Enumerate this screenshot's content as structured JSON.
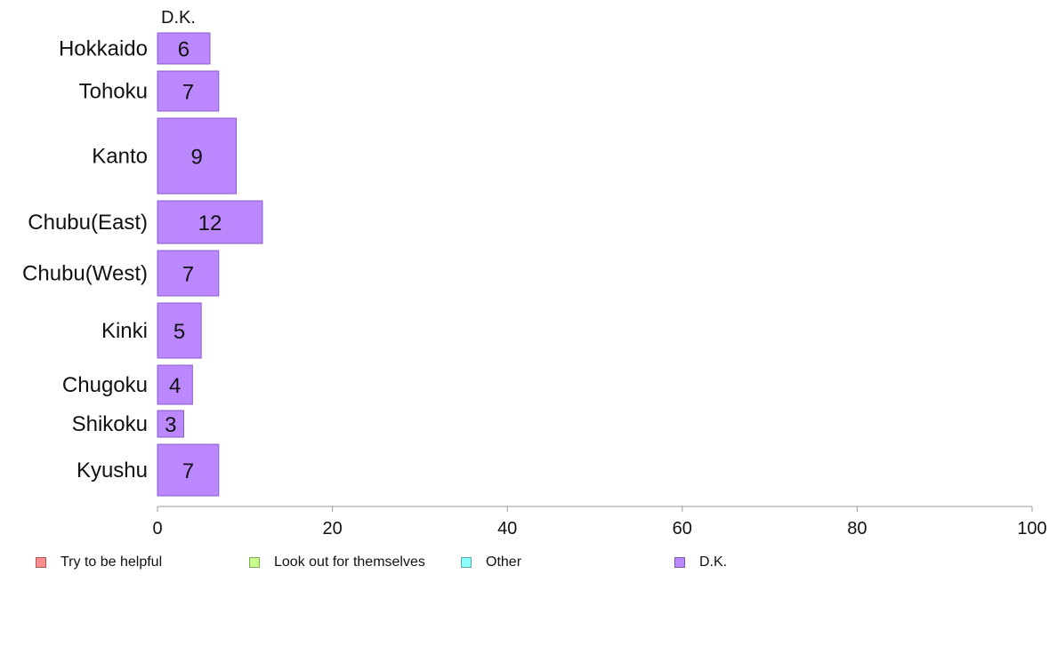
{
  "chart_data": {
    "type": "bar",
    "orientation": "horizontal",
    "stacked": true,
    "column_header": "D.K.",
    "categories": [
      "Hokkaido",
      "Tohoku",
      "Kanto",
      "Chubu(East)",
      "Chubu(West)",
      "Kinki",
      "Chugoku",
      "Shikoku",
      "Kyushu"
    ],
    "series": [
      {
        "name": "Try to be helpful",
        "color": "#ff8c8c",
        "values": [
          null,
          null,
          null,
          null,
          null,
          null,
          null,
          null,
          null
        ]
      },
      {
        "name": "Look out for themselves",
        "color": "#c8ff8c",
        "values": [
          null,
          null,
          null,
          null,
          null,
          null,
          null,
          null,
          null
        ]
      },
      {
        "name": "Other",
        "color": "#8cffff",
        "values": [
          null,
          null,
          null,
          null,
          null,
          null,
          null,
          null,
          null
        ]
      },
      {
        "name": "D.K.",
        "color": "#bb88ff",
        "values": [
          6,
          7,
          9,
          12,
          7,
          5,
          4,
          3,
          7
        ]
      }
    ],
    "data_labels": [
      "6",
      "7",
      "9",
      "12",
      "7",
      "5",
      "4",
      "3",
      "7"
    ],
    "xlim": [
      0,
      100
    ],
    "xticks": [
      "0",
      "20",
      "40",
      "60",
      "80",
      "100"
    ],
    "xlabel": "",
    "ylabel": "",
    "grid": false,
    "legend_position": "bottom"
  }
}
